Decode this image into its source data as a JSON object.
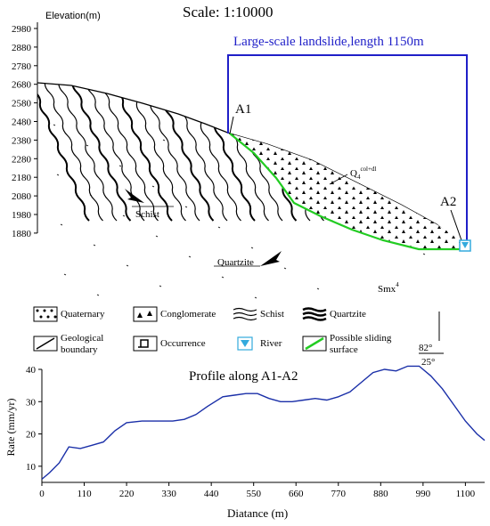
{
  "geology": {
    "scale": "Scale: 1:10000",
    "elevation_label": "Elevation(m)",
    "elevation_ticks": [
      "2980",
      "2880",
      "2780",
      "2680",
      "2580",
      "2480",
      "2380",
      "2280",
      "2180",
      "2080",
      "1980",
      "1880"
    ],
    "landslide_label": "Large-scale landslide,length 1150m",
    "point_a1": "A1",
    "point_a2": "A2",
    "deposit_label": "Q",
    "deposit_sub": "4",
    "deposit_sup": "col+dl",
    "schist_label": "Schist",
    "quartzite_label": "Quartzite",
    "formation_label": "Smx",
    "formation_sup": "4",
    "dip_top": "82°",
    "dip_bottom": "25°"
  },
  "legend": {
    "items": [
      {
        "label": "Quaternary",
        "symbol": "quaternary-symbol"
      },
      {
        "label": "Conglomerate",
        "symbol": "conglomerate-symbol"
      },
      {
        "label": "Schist",
        "symbol": "schist-symbol"
      },
      {
        "label": "Quartzite",
        "symbol": "quartzite-symbol"
      },
      {
        "label": "Geological\nboundary",
        "symbol": "boundary-symbol"
      },
      {
        "label": "Occurrence",
        "symbol": "occurrence-symbol"
      },
      {
        "label": "River",
        "symbol": "river-icon"
      },
      {
        "label": "Possible sliding\nsurface",
        "symbol": "sliding-surface-symbol"
      }
    ]
  },
  "colors": {
    "landslide_box": "#1f1fc8",
    "sliding_surface": "#22cc22",
    "profile_line": "#1a2fa8",
    "river": "#33aadd"
  },
  "chart_data": {
    "type": "line",
    "title": "Profile along A1-A2",
    "xlabel": "Diatance (m)",
    "ylabel": "Rate (mm/yr)",
    "xlim": [
      0,
      1150
    ],
    "ylim": [
      5,
      40
    ],
    "xticks": [
      0,
      110,
      220,
      330,
      440,
      550,
      660,
      770,
      880,
      990,
      1100
    ],
    "yticks": [
      10,
      20,
      30,
      40
    ],
    "grid": false,
    "series": [
      {
        "x": [
          0,
          20,
          45,
          70,
          100,
          130,
          160,
          190,
          220,
          260,
          300,
          340,
          370,
          400,
          430,
          470,
          500,
          530,
          560,
          590,
          620,
          650,
          680,
          710,
          740,
          770,
          800,
          830,
          860,
          890,
          920,
          950,
          980,
          1010,
          1040,
          1070,
          1100,
          1130,
          1150
        ],
        "values": [
          6,
          8,
          11,
          16,
          15.5,
          16.5,
          17.5,
          21,
          23.5,
          24,
          24,
          24,
          24.5,
          26,
          28.5,
          31.5,
          32,
          32.5,
          32.5,
          31,
          30,
          30,
          30.5,
          31,
          30.5,
          31.5,
          33,
          36,
          39,
          40,
          39.5,
          41,
          41,
          38,
          34,
          29,
          24,
          20,
          18
        ]
      }
    ]
  }
}
